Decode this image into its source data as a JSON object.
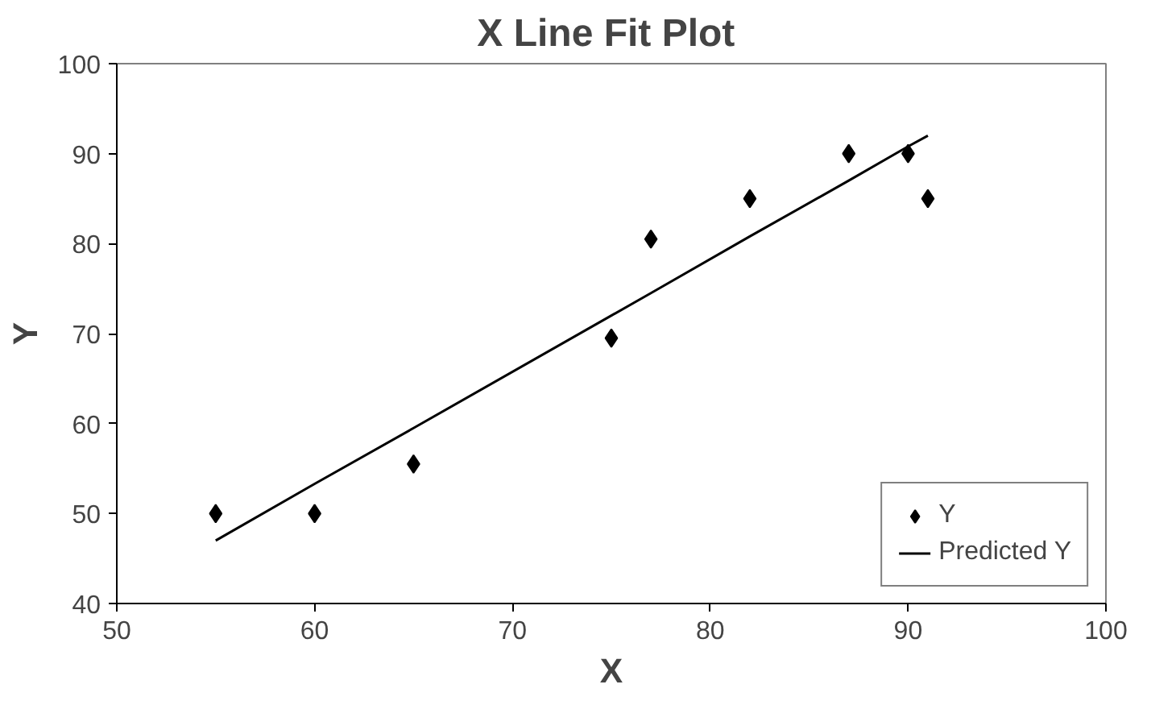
{
  "chart_data": {
    "type": "scatter",
    "title": "X Line Fit  Plot",
    "xlabel": "X",
    "ylabel": "Y",
    "x": [
      55,
      60,
      65,
      75,
      77,
      82,
      87,
      90,
      91
    ],
    "series": [
      {
        "name": "Y",
        "marker": "diamond",
        "color": "#000000",
        "values": [
          50,
          50,
          55.5,
          69.5,
          80.5,
          85,
          90,
          90,
          85
        ]
      },
      {
        "name": "Predicted Y",
        "type": "line",
        "marker": "none",
        "line_style": "solid",
        "color": "#000000",
        "values": [
          47,
          53.3,
          59.5,
          72,
          74.5,
          80.8,
          87,
          90.8,
          92
        ]
      }
    ],
    "xlim": [
      50,
      100
    ],
    "ylim": [
      40,
      100
    ],
    "xticks": [
      50,
      60,
      70,
      80,
      90,
      100
    ],
    "yticks": [
      40,
      50,
      60,
      70,
      80,
      90,
      100
    ],
    "grid": false,
    "legend": "bottom right"
  }
}
